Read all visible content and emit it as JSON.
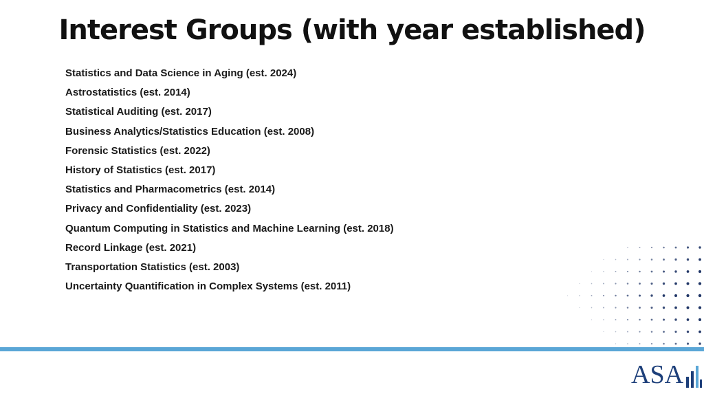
{
  "title": "Interest Groups (with year established)",
  "groups": [
    "Statistics and Data Science in Aging (est. 2024)",
    "Astrostatistics (est. 2014)",
    "Statistical Auditing (est. 2017)",
    "Business Analytics/Statistics Education (est. 2008)",
    "Forensic Statistics (est. 2022)",
    "History of Statistics (est. 2017)",
    "Statistics and Pharmacometrics (est. 2014)",
    "Privacy and Confidentiality (est. 2023)",
    "Quantum Computing in Statistics and Machine Learning (est. 2018)",
    "Record Linkage (est. 2021)",
    "Transportation Statistics (est. 2003)",
    "Uncertainty Quantification in Complex Systems (est. 2011)"
  ],
  "logo": {
    "text": "ASA",
    "icon": "asa-bars-icon"
  },
  "colors": {
    "divider": "#5aa6d6",
    "logo": "#1d3f7a",
    "dots": "#1f3566"
  }
}
